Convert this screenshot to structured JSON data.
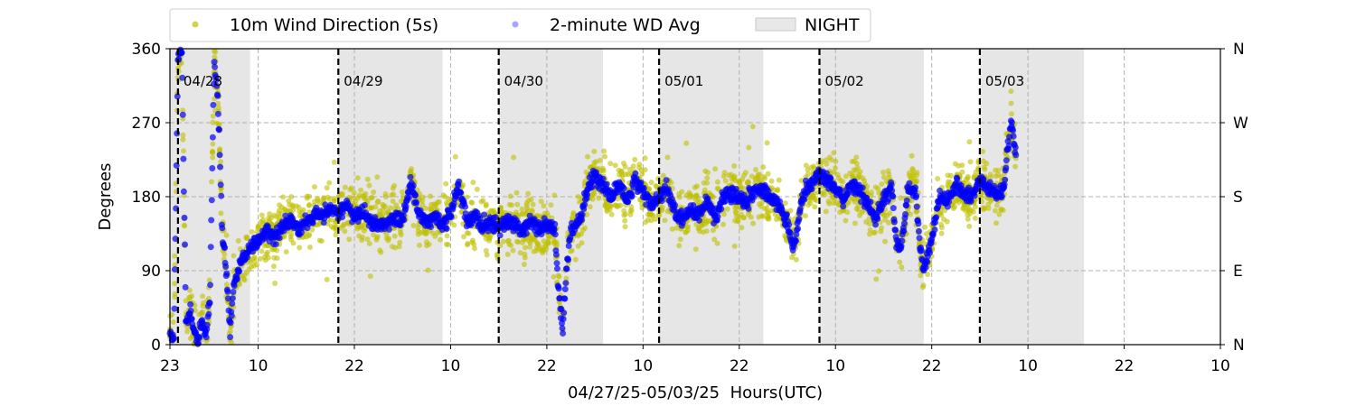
{
  "chart_data": {
    "type": "scatter",
    "title": "",
    "xlabel": "04/27/25-05/03/25  Hours(UTC)",
    "ylabel": "Degrees",
    "ylim": [
      0,
      360
    ],
    "yticks": [
      0,
      90,
      180,
      270,
      360
    ],
    "yticklabels_right": [
      "N",
      "E",
      "S",
      "W",
      "N"
    ],
    "x_unit": "hours since 04/27/25 23:00 UTC",
    "xlim": [
      0,
      131
    ],
    "xticks": [
      0,
      11,
      23,
      35,
      47,
      59,
      71,
      83,
      95,
      107,
      119,
      131
    ],
    "xticklabels": [
      "23",
      "10",
      "22",
      "10",
      "22",
      "10",
      "22",
      "10",
      "22",
      "10",
      "22",
      "10"
    ],
    "grid": true,
    "legend_position": "top, above plot",
    "legend": [
      {
        "label": "10m Wind Direction (5s)",
        "color": "#bfbf00",
        "marker": "circle"
      },
      {
        "label": "2-minute WD Avg",
        "color": "#0000ff",
        "marker": "circle"
      },
      {
        "label": "NIGHT",
        "color": "#d9d9d9",
        "marker": "patch"
      }
    ],
    "night_periods": [
      [
        0,
        10
      ],
      [
        21,
        34
      ],
      [
        41,
        54
      ],
      [
        61,
        74
      ],
      [
        81,
        94
      ],
      [
        101,
        114
      ]
    ],
    "day_boundaries": [
      {
        "x": 1,
        "label": "04/28"
      },
      {
        "x": 21,
        "label": "04/29"
      },
      {
        "x": 41,
        "label": "04/30"
      },
      {
        "x": 61,
        "label": "05/01"
      },
      {
        "x": 81,
        "label": "05/02"
      },
      {
        "x": 101,
        "label": "05/03"
      }
    ],
    "series": [
      {
        "name": "2-minute WD Avg",
        "color": "#0000ff",
        "points": [
          [
            0,
            15
          ],
          [
            0.5,
            5
          ],
          [
            1,
            350
          ],
          [
            1.5,
            355
          ],
          [
            2,
            20
          ],
          [
            2.5,
            40
          ],
          [
            3,
            15
          ],
          [
            3.5,
            5
          ],
          [
            4,
            30
          ],
          [
            4.5,
            10
          ],
          [
            5,
            60
          ],
          [
            5.5,
            340
          ],
          [
            6,
            300
          ],
          [
            6.5,
            140
          ],
          [
            7,
            90
          ],
          [
            7.5,
            20
          ],
          [
            8,
            75
          ],
          [
            9,
            105
          ],
          [
            10,
            115
          ],
          [
            11,
            125
          ],
          [
            12,
            140
          ],
          [
            13,
            130
          ],
          [
            14,
            145
          ],
          [
            15,
            155
          ],
          [
            16,
            140
          ],
          [
            17,
            150
          ],
          [
            18,
            160
          ],
          [
            19,
            155
          ],
          [
            20,
            165
          ],
          [
            21,
            160
          ],
          [
            22,
            170
          ],
          [
            23,
            155
          ],
          [
            24,
            160
          ],
          [
            25,
            150
          ],
          [
            26,
            145
          ],
          [
            27,
            150
          ],
          [
            28,
            155
          ],
          [
            29,
            150
          ],
          [
            30,
            200
          ],
          [
            31,
            160
          ],
          [
            32,
            150
          ],
          [
            33,
            155
          ],
          [
            34,
            145
          ],
          [
            35,
            160
          ],
          [
            36,
            195
          ],
          [
            37,
            150
          ],
          [
            38,
            155
          ],
          [
            39,
            145
          ],
          [
            40,
            150
          ],
          [
            41,
            140
          ],
          [
            42,
            150
          ],
          [
            43,
            145
          ],
          [
            44,
            140
          ],
          [
            45,
            150
          ],
          [
            46,
            140
          ],
          [
            47,
            145
          ],
          [
            48,
            140
          ],
          [
            48.5,
            60
          ],
          [
            49,
            20
          ],
          [
            49.5,
            100
          ],
          [
            50,
            140
          ],
          [
            51,
            150
          ],
          [
            52,
            185
          ],
          [
            53,
            205
          ],
          [
            54,
            195
          ],
          [
            55,
            180
          ],
          [
            56,
            195
          ],
          [
            57,
            175
          ],
          [
            58,
            200
          ],
          [
            59,
            185
          ],
          [
            60,
            170
          ],
          [
            61,
            180
          ],
          [
            62,
            190
          ],
          [
            63,
            160
          ],
          [
            64,
            150
          ],
          [
            65,
            165
          ],
          [
            66,
            160
          ],
          [
            67,
            175
          ],
          [
            68,
            155
          ],
          [
            69,
            180
          ],
          [
            70,
            185
          ],
          [
            71,
            180
          ],
          [
            72,
            175
          ],
          [
            73,
            190
          ],
          [
            74,
            185
          ],
          [
            75,
            180
          ],
          [
            76,
            170
          ],
          [
            77,
            150
          ],
          [
            77.5,
            125
          ],
          [
            78,
            120
          ],
          [
            78.5,
            160
          ],
          [
            79,
            185
          ],
          [
            80,
            195
          ],
          [
            81,
            210
          ],
          [
            82,
            200
          ],
          [
            83,
            190
          ],
          [
            84,
            175
          ],
          [
            85,
            195
          ],
          [
            86,
            185
          ],
          [
            87,
            170
          ],
          [
            88,
            155
          ],
          [
            89,
            175
          ],
          [
            90,
            195
          ],
          [
            90.5,
            130
          ],
          [
            91,
            115
          ],
          [
            91.5,
            135
          ],
          [
            92,
            190
          ],
          [
            93,
            190
          ],
          [
            93.5,
            120
          ],
          [
            94,
            90
          ],
          [
            94.5,
            110
          ],
          [
            95,
            130
          ],
          [
            96,
            180
          ],
          [
            97,
            175
          ],
          [
            98,
            195
          ],
          [
            99,
            185
          ],
          [
            100,
            180
          ],
          [
            101,
            200
          ],
          [
            102,
            190
          ],
          [
            103,
            185
          ],
          [
            104,
            190
          ],
          [
            104.5,
            240
          ],
          [
            105,
            270
          ],
          [
            105.5,
            230
          ]
        ]
      }
    ]
  }
}
